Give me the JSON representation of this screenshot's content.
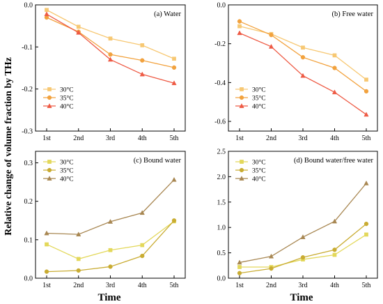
{
  "figure": {
    "ylabel": "Relative change of volume fraction by THz",
    "xlabel": "Time"
  },
  "chart_data": [
    {
      "type": "line",
      "title": "(a) Water",
      "categories": [
        "1st",
        "2nd",
        "3rd",
        "4th",
        "5th"
      ],
      "ylim": [
        -0.3,
        0.0
      ],
      "yticks": [
        0.0,
        -0.1,
        -0.2,
        -0.3
      ],
      "ytick_labels": [
        "0.0",
        "-0.1",
        "-0.2",
        "-0.3"
      ],
      "grid": false,
      "legend": "bottom-left",
      "series": [
        {
          "name": "30°C",
          "marker": "square",
          "color": "#F7C873",
          "values": [
            -0.012,
            -0.052,
            -0.08,
            -0.096,
            -0.128
          ]
        },
        {
          "name": "35°C",
          "marker": "circle",
          "color": "#F2A23E",
          "values": [
            -0.03,
            -0.064,
            -0.118,
            -0.132,
            -0.149
          ]
        },
        {
          "name": "40°C",
          "marker": "triangle",
          "color": "#EE5A44",
          "values": [
            -0.022,
            -0.066,
            -0.13,
            -0.165,
            -0.186
          ]
        }
      ]
    },
    {
      "type": "line",
      "title": "(b) Free water",
      "categories": [
        "1st",
        "2nd",
        "3rd",
        "4th",
        "5th"
      ],
      "ylim": [
        -0.65,
        0.0
      ],
      "yticks": [
        0.0,
        -0.2,
        -0.4,
        -0.6
      ],
      "ytick_labels": [
        "0.0",
        "-0.2",
        "-0.4",
        "-0.6"
      ],
      "grid": false,
      "legend": "bottom-left",
      "series": [
        {
          "name": "30°C",
          "marker": "square",
          "color": "#F7C873",
          "values": [
            -0.11,
            -0.15,
            -0.22,
            -0.26,
            -0.385
          ]
        },
        {
          "name": "35°C",
          "marker": "circle",
          "color": "#F2A23E",
          "values": [
            -0.085,
            -0.155,
            -0.27,
            -0.325,
            -0.445
          ]
        },
        {
          "name": "40°C",
          "marker": "triangle",
          "color": "#EE5A44",
          "values": [
            -0.145,
            -0.215,
            -0.365,
            -0.45,
            -0.565
          ]
        }
      ]
    },
    {
      "type": "line",
      "title": "(c) Bound water",
      "categories": [
        "1st",
        "2nd",
        "3rd",
        "4th",
        "5th"
      ],
      "ylim": [
        0.0,
        0.33
      ],
      "yticks": [
        0.0,
        0.1,
        0.2,
        0.3
      ],
      "ytick_labels": [
        "0.0",
        "0.1",
        "0.2",
        "0.3"
      ],
      "grid": false,
      "legend": "top-left",
      "series": [
        {
          "name": "30°C",
          "marker": "square",
          "color": "#E3D85A",
          "values": [
            0.088,
            0.05,
            0.073,
            0.086,
            0.148
          ]
        },
        {
          "name": "35°C",
          "marker": "circle",
          "color": "#C9AC32",
          "values": [
            0.017,
            0.02,
            0.03,
            0.058,
            0.15
          ]
        },
        {
          "name": "40°C",
          "marker": "triangle",
          "color": "#A88752",
          "values": [
            0.117,
            0.114,
            0.147,
            0.17,
            0.256
          ]
        }
      ]
    },
    {
      "type": "line",
      "title": "(d) Bound water/free water",
      "categories": [
        "1st",
        "2nd",
        "3rd",
        "4th",
        "5th"
      ],
      "ylim": [
        0.0,
        2.5
      ],
      "yticks": [
        0.0,
        0.5,
        1.0,
        1.5,
        2.0,
        2.5
      ],
      "ytick_labels": [
        "0.0",
        "0.5",
        "1.0",
        "1.5",
        "2.0",
        "2.5"
      ],
      "grid": false,
      "legend": "top-left",
      "series": [
        {
          "name": "30°C",
          "marker": "square",
          "color": "#E3D85A",
          "values": [
            0.22,
            0.22,
            0.37,
            0.46,
            0.86
          ]
        },
        {
          "name": "35°C",
          "marker": "circle",
          "color": "#C9AC32",
          "values": [
            0.1,
            0.19,
            0.41,
            0.56,
            1.07
          ]
        },
        {
          "name": "40°C",
          "marker": "triangle",
          "color": "#A88752",
          "values": [
            0.31,
            0.43,
            0.81,
            1.12,
            1.87
          ]
        }
      ]
    }
  ]
}
